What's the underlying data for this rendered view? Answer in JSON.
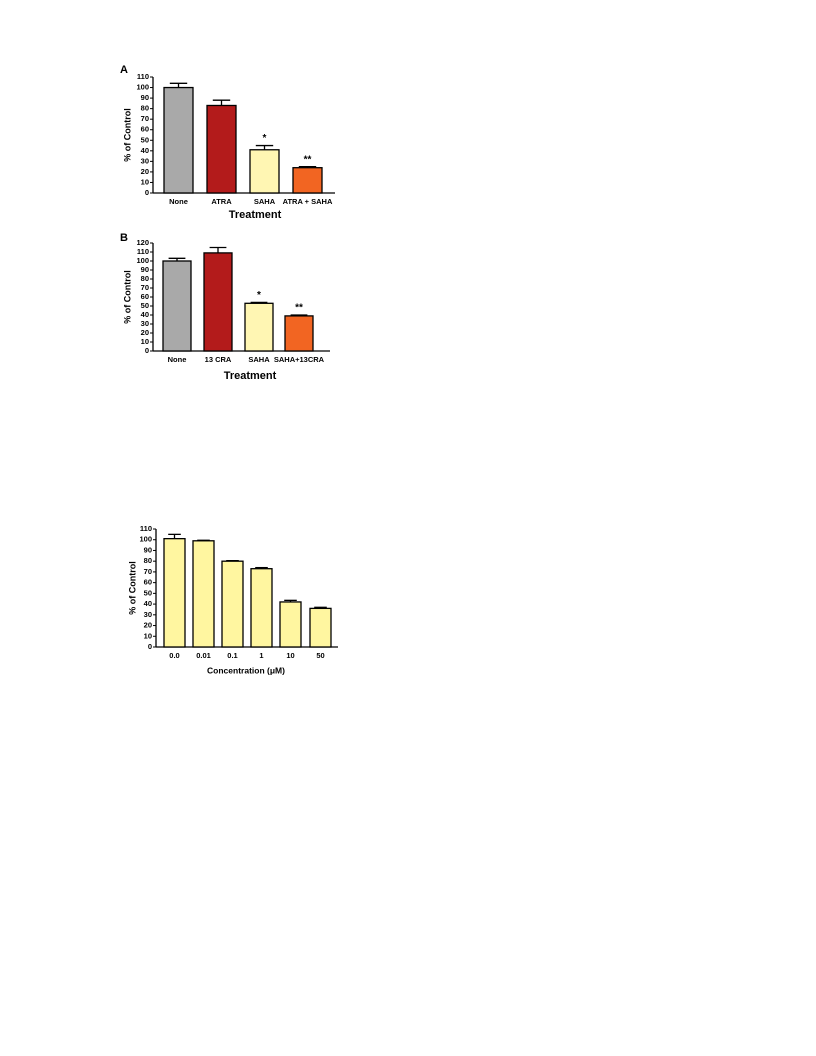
{
  "chart_data": [
    {
      "type": "bar",
      "panel": "A",
      "y_label": "% of Control",
      "x_label": "Treatment",
      "categories": [
        "None",
        "ATRA",
        "SAHA",
        "ATRA + SAHA"
      ],
      "values": [
        100,
        83,
        41,
        24
      ],
      "errors": [
        4,
        5,
        4,
        1
      ],
      "annotations": [
        null,
        null,
        "*",
        "**"
      ],
      "colors": [
        "#a9a9a9",
        "#b31b1b",
        "#fff6b3",
        "#f26522"
      ],
      "ylim": [
        0,
        110
      ],
      "yticks": [
        0,
        10,
        20,
        30,
        40,
        50,
        60,
        70,
        80,
        90,
        100,
        110
      ]
    },
    {
      "type": "bar",
      "panel": "B",
      "y_label": "% of Control",
      "x_label": "Treatment",
      "categories": [
        "None",
        "13 CRA",
        "SAHA",
        "SAHA+13CRA"
      ],
      "values": [
        100,
        109,
        53,
        39
      ],
      "errors": [
        3,
        6,
        1,
        1
      ],
      "annotations": [
        null,
        null,
        "*",
        "**"
      ],
      "colors": [
        "#a9a9a9",
        "#b31b1b",
        "#fff6b3",
        "#f26522"
      ],
      "ylim": [
        0,
        120
      ],
      "yticks": [
        0,
        10,
        20,
        30,
        40,
        50,
        60,
        70,
        80,
        90,
        100,
        110,
        120
      ]
    },
    {
      "type": "bar",
      "y_label": "% of Control",
      "x_label": "Concentration (μM)",
      "categories": [
        "0.0",
        "0.01",
        "0.1",
        "1",
        "10",
        "50"
      ],
      "values": [
        101,
        99,
        80,
        73,
        42,
        36
      ],
      "errors": [
        4,
        0.5,
        0.5,
        1,
        1.5,
        1
      ],
      "colors": [
        "#fff6a0",
        "#fff6a0",
        "#fff6a0",
        "#fff6a0",
        "#fff6a0",
        "#fff6a0"
      ],
      "ylim": [
        0,
        110
      ],
      "yticks": [
        0,
        10,
        20,
        30,
        40,
        50,
        60,
        70,
        80,
        90,
        100,
        110
      ]
    }
  ]
}
